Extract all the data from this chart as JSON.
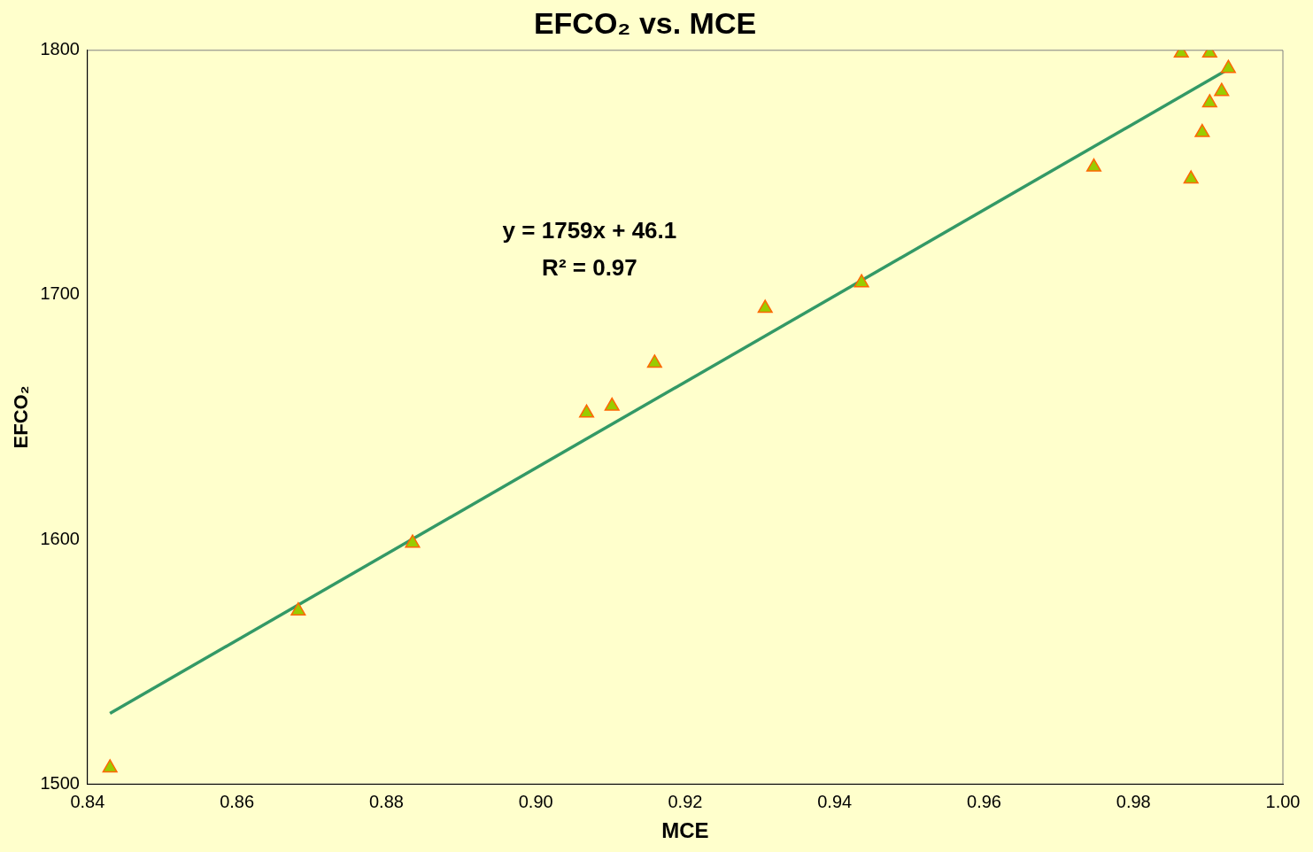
{
  "chart_data": {
    "type": "scatter",
    "title": "EFCO₂ vs. MCE",
    "xlabel": "MCE",
    "ylabel": "EFCO₂",
    "xlim": [
      0.84,
      1.0
    ],
    "xticks": [
      0.84,
      0.86,
      0.88,
      {
        "value": 0.9,
        "label": "0.90"
      },
      0.92,
      0.94,
      0.96,
      0.98,
      {
        "value": 1.0,
        "label": "1.00"
      }
    ],
    "ylim": [
      1500,
      1800
    ],
    "yticks": [
      1500,
      1600,
      1700,
      1800
    ],
    "grid": false,
    "legend": false,
    "marker": "triangle",
    "annotations": [
      "y = 1759x + 46.1",
      "R² = 0.97"
    ],
    "series": [
      {
        "color": "#99cc00",
        "x": [
          0.843,
          0.8682,
          0.8835,
          0.9068,
          0.9102,
          0.9159,
          0.9307,
          0.9436,
          0.9747,
          0.9877,
          0.9864,
          0.9902,
          0.9927,
          0.9918,
          0.9902,
          0.9892
        ],
        "values": [
          1506.6,
          1570.8,
          1598.5,
          1651.7,
          1654.5,
          1672.1,
          1694.5,
          1705.0,
          1752.3,
          1747.4,
          1798.9,
          1798.9,
          1792.6,
          1783.2,
          1778.6,
          1766.4
        ]
      },
      {
        "type": "line",
        "marker": "none",
        "color": "#339966",
        "x": [
          0.843,
          0.9927
        ],
        "values": [
          1528.9,
          1792.3
        ]
      }
    ]
  }
}
